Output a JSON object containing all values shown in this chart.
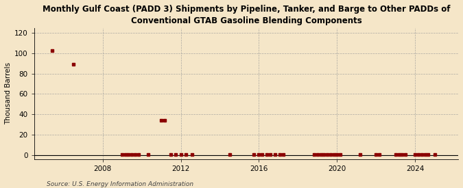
{
  "title": "Monthly Gulf Coast (PADD 3) Shipments by Pipeline, Tanker, and Barge to Other PADDs of\nConventional GTAB Gasoline Blending Components",
  "ylabel": "Thousand Barrels",
  "source": "Source: U.S. Energy Information Administration",
  "bg_color": "#f5e6c8",
  "plot_bg_color": "#f5e6c8",
  "marker_color": "#8b0000",
  "ylim": [
    -4,
    125
  ],
  "yticks": [
    0,
    20,
    40,
    60,
    80,
    100,
    120
  ],
  "xlim_start": 2004.5,
  "xlim_end": 2026.2,
  "xticks": [
    2008,
    2012,
    2016,
    2020,
    2024
  ],
  "data_points": [
    [
      2005.4,
      103
    ],
    [
      2006.5,
      89
    ],
    [
      2009.0,
      0.5
    ],
    [
      2009.17,
      0.5
    ],
    [
      2009.33,
      0.5
    ],
    [
      2009.5,
      0.5
    ],
    [
      2009.67,
      0.5
    ],
    [
      2009.83,
      0.5
    ],
    [
      2010.33,
      0.5
    ],
    [
      2011.0,
      34
    ],
    [
      2011.17,
      34
    ],
    [
      2011.5,
      0.5
    ],
    [
      2011.75,
      0.5
    ],
    [
      2012.0,
      0.5
    ],
    [
      2012.25,
      0.5
    ],
    [
      2012.58,
      0.5
    ],
    [
      2014.5,
      0.5
    ],
    [
      2015.75,
      0.5
    ],
    [
      2016.0,
      0.5
    ],
    [
      2016.17,
      0.5
    ],
    [
      2016.42,
      0.5
    ],
    [
      2016.58,
      0.5
    ],
    [
      2016.83,
      0.5
    ],
    [
      2017.08,
      0.5
    ],
    [
      2017.25,
      0.5
    ],
    [
      2018.83,
      0.5
    ],
    [
      2019.0,
      0.5
    ],
    [
      2019.17,
      0.5
    ],
    [
      2019.33,
      0.5
    ],
    [
      2019.5,
      0.5
    ],
    [
      2019.67,
      0.5
    ],
    [
      2019.83,
      0.5
    ],
    [
      2020.0,
      0.5
    ],
    [
      2020.17,
      0.5
    ],
    [
      2021.17,
      0.5
    ],
    [
      2022.0,
      0.5
    ],
    [
      2022.17,
      0.5
    ],
    [
      2023.0,
      0.5
    ],
    [
      2023.17,
      0.5
    ],
    [
      2023.33,
      0.5
    ],
    [
      2023.5,
      0.5
    ],
    [
      2024.0,
      0.5
    ],
    [
      2024.17,
      0.5
    ],
    [
      2024.33,
      0.5
    ],
    [
      2024.5,
      0.5
    ],
    [
      2024.67,
      0.5
    ],
    [
      2025.0,
      0.5
    ]
  ]
}
